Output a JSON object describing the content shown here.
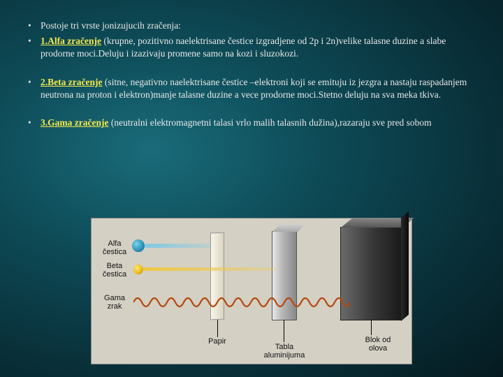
{
  "bullets": {
    "b1": "Postoje tri vrste jonizujucih zračenja:",
    "b2_plain": " (krupne, pozitivno naelektrisane čestice izgradjene od 2p i 2n)velike talasne duzine a slabe prodorne moci.Deluju i izazivaju promene samo na kozi i sluzokozi.",
    "b2_highlight": "1.Alfa zračenje",
    "b3_plain": " (sitne, negativno naelektrisane čestice –elektroni koji se emituju iz jezgra a nastaju raspadanjem neutrona na proton i elektron)manje talasne duzine a vece prodorne moci.Stetno deluju na sva meka tkiva.",
    "b3_highlight": "2.Beta zračenje",
    "b4_plain": " (neutralni elektromagnetni talasi vrlo malih talasnih dužina),razaraju sve pred sobom",
    "b4_highlight": "3.Gama zračenje"
  },
  "diagram": {
    "alfa": "Alfa\nčestica",
    "beta": "Beta\nčestica",
    "gama": "Gama\nzrak",
    "papir": "Papir",
    "tabla": "Tabla\naluminijuma",
    "blok": "Blok od\nolova",
    "colors": {
      "bg": "#d4d0c4",
      "alpha_particle": "#2a8fb8",
      "beta_particle": "#e8b818",
      "gamma_wave": "#b5480d",
      "paper": "#eae6d4",
      "aluminum": "#b8b8b8",
      "lead": "#3a3a3a"
    }
  }
}
